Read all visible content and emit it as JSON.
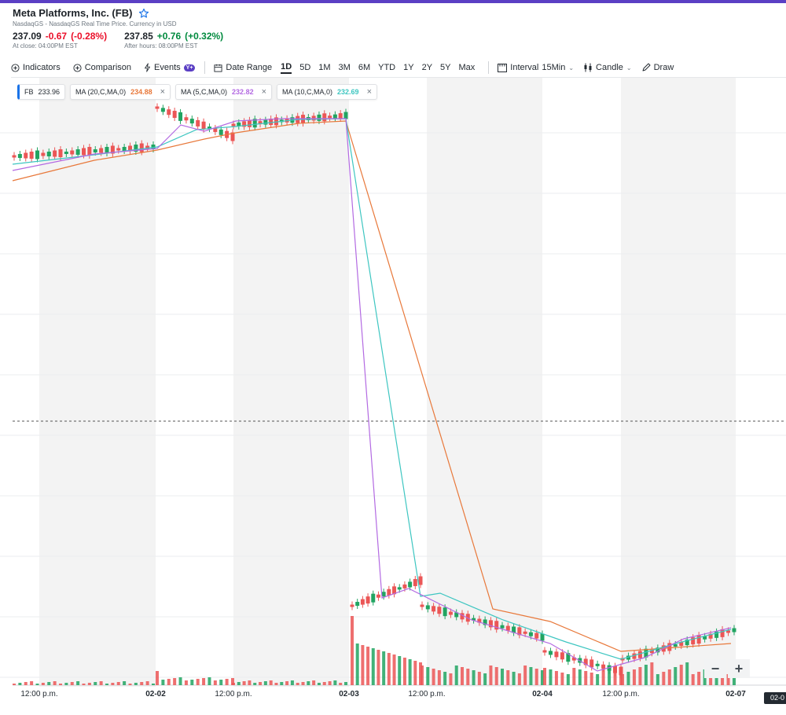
{
  "header": {
    "title": "Meta Platforms, Inc. (FB)",
    "subtitle": "NasdaqGS - NasdaqGS Real Time Price. Currency in USD",
    "close_price": "237.09",
    "close_change": "-0.67",
    "close_pct": "(-0.28%)",
    "close_note": "At close: 04:00PM EST",
    "after_price": "237.85",
    "after_change": "+0.76",
    "after_pct": "(+0.32%)",
    "after_note": "After hours: 08:00PM EST"
  },
  "toolbar": {
    "indicators": "Indicators",
    "comparison": "Comparison",
    "events": "Events",
    "events_badge": "Y+",
    "date_range": "Date Range",
    "ranges": [
      "1D",
      "5D",
      "1M",
      "3M",
      "6M",
      "YTD",
      "1Y",
      "2Y",
      "5Y",
      "Max"
    ],
    "active_range": "1D",
    "interval_label": "Interval",
    "interval_value": "15Min",
    "chart_type": "Candle",
    "draw": "Draw"
  },
  "legend": {
    "symbol": "FB",
    "symbol_value": "233.96",
    "ma20_label": "MA (20,C,MA,0)",
    "ma20_value": "234.88",
    "ma5_label": "MA (5,C,MA,0)",
    "ma5_value": "232.82",
    "ma10_label": "MA (10,C,MA,0)",
    "ma10_value": "232.69"
  },
  "colors": {
    "up": "#21a461",
    "down": "#eb5656",
    "ma20": "#e8783a",
    "ma5": "#b36ae2",
    "ma10": "#3ec6c1",
    "session_shade": "#f3f3f3",
    "accent": "#5b3fc4"
  },
  "zoom": {
    "minus": "−",
    "plus": "+"
  },
  "x_axis": {
    "labels": [
      "12:00 p.m.",
      "02-02",
      "12:00 p.m.",
      "02-03",
      "12:00 p.m.",
      "02-04",
      "12:00 p.m.",
      "02-07"
    ],
    "cursor_label": "02-0"
  },
  "chart_data": {
    "type": "candlestick",
    "interval": "15Min",
    "dates": [
      "02-02",
      "02-03",
      "02-04",
      "02-07"
    ],
    "y_axis_labels": "not visible",
    "visible_values": {
      "last_close": 233.96,
      "ma20": 234.88,
      "ma5": 232.82,
      "ma10": 232.69
    },
    "segments": [
      {
        "name": "pre-02-03",
        "approx_level": "high, ~flat then small rise"
      },
      {
        "name": "post-02-03",
        "approx_level": "large gap down, gradual decline then small rebound"
      }
    ]
  }
}
